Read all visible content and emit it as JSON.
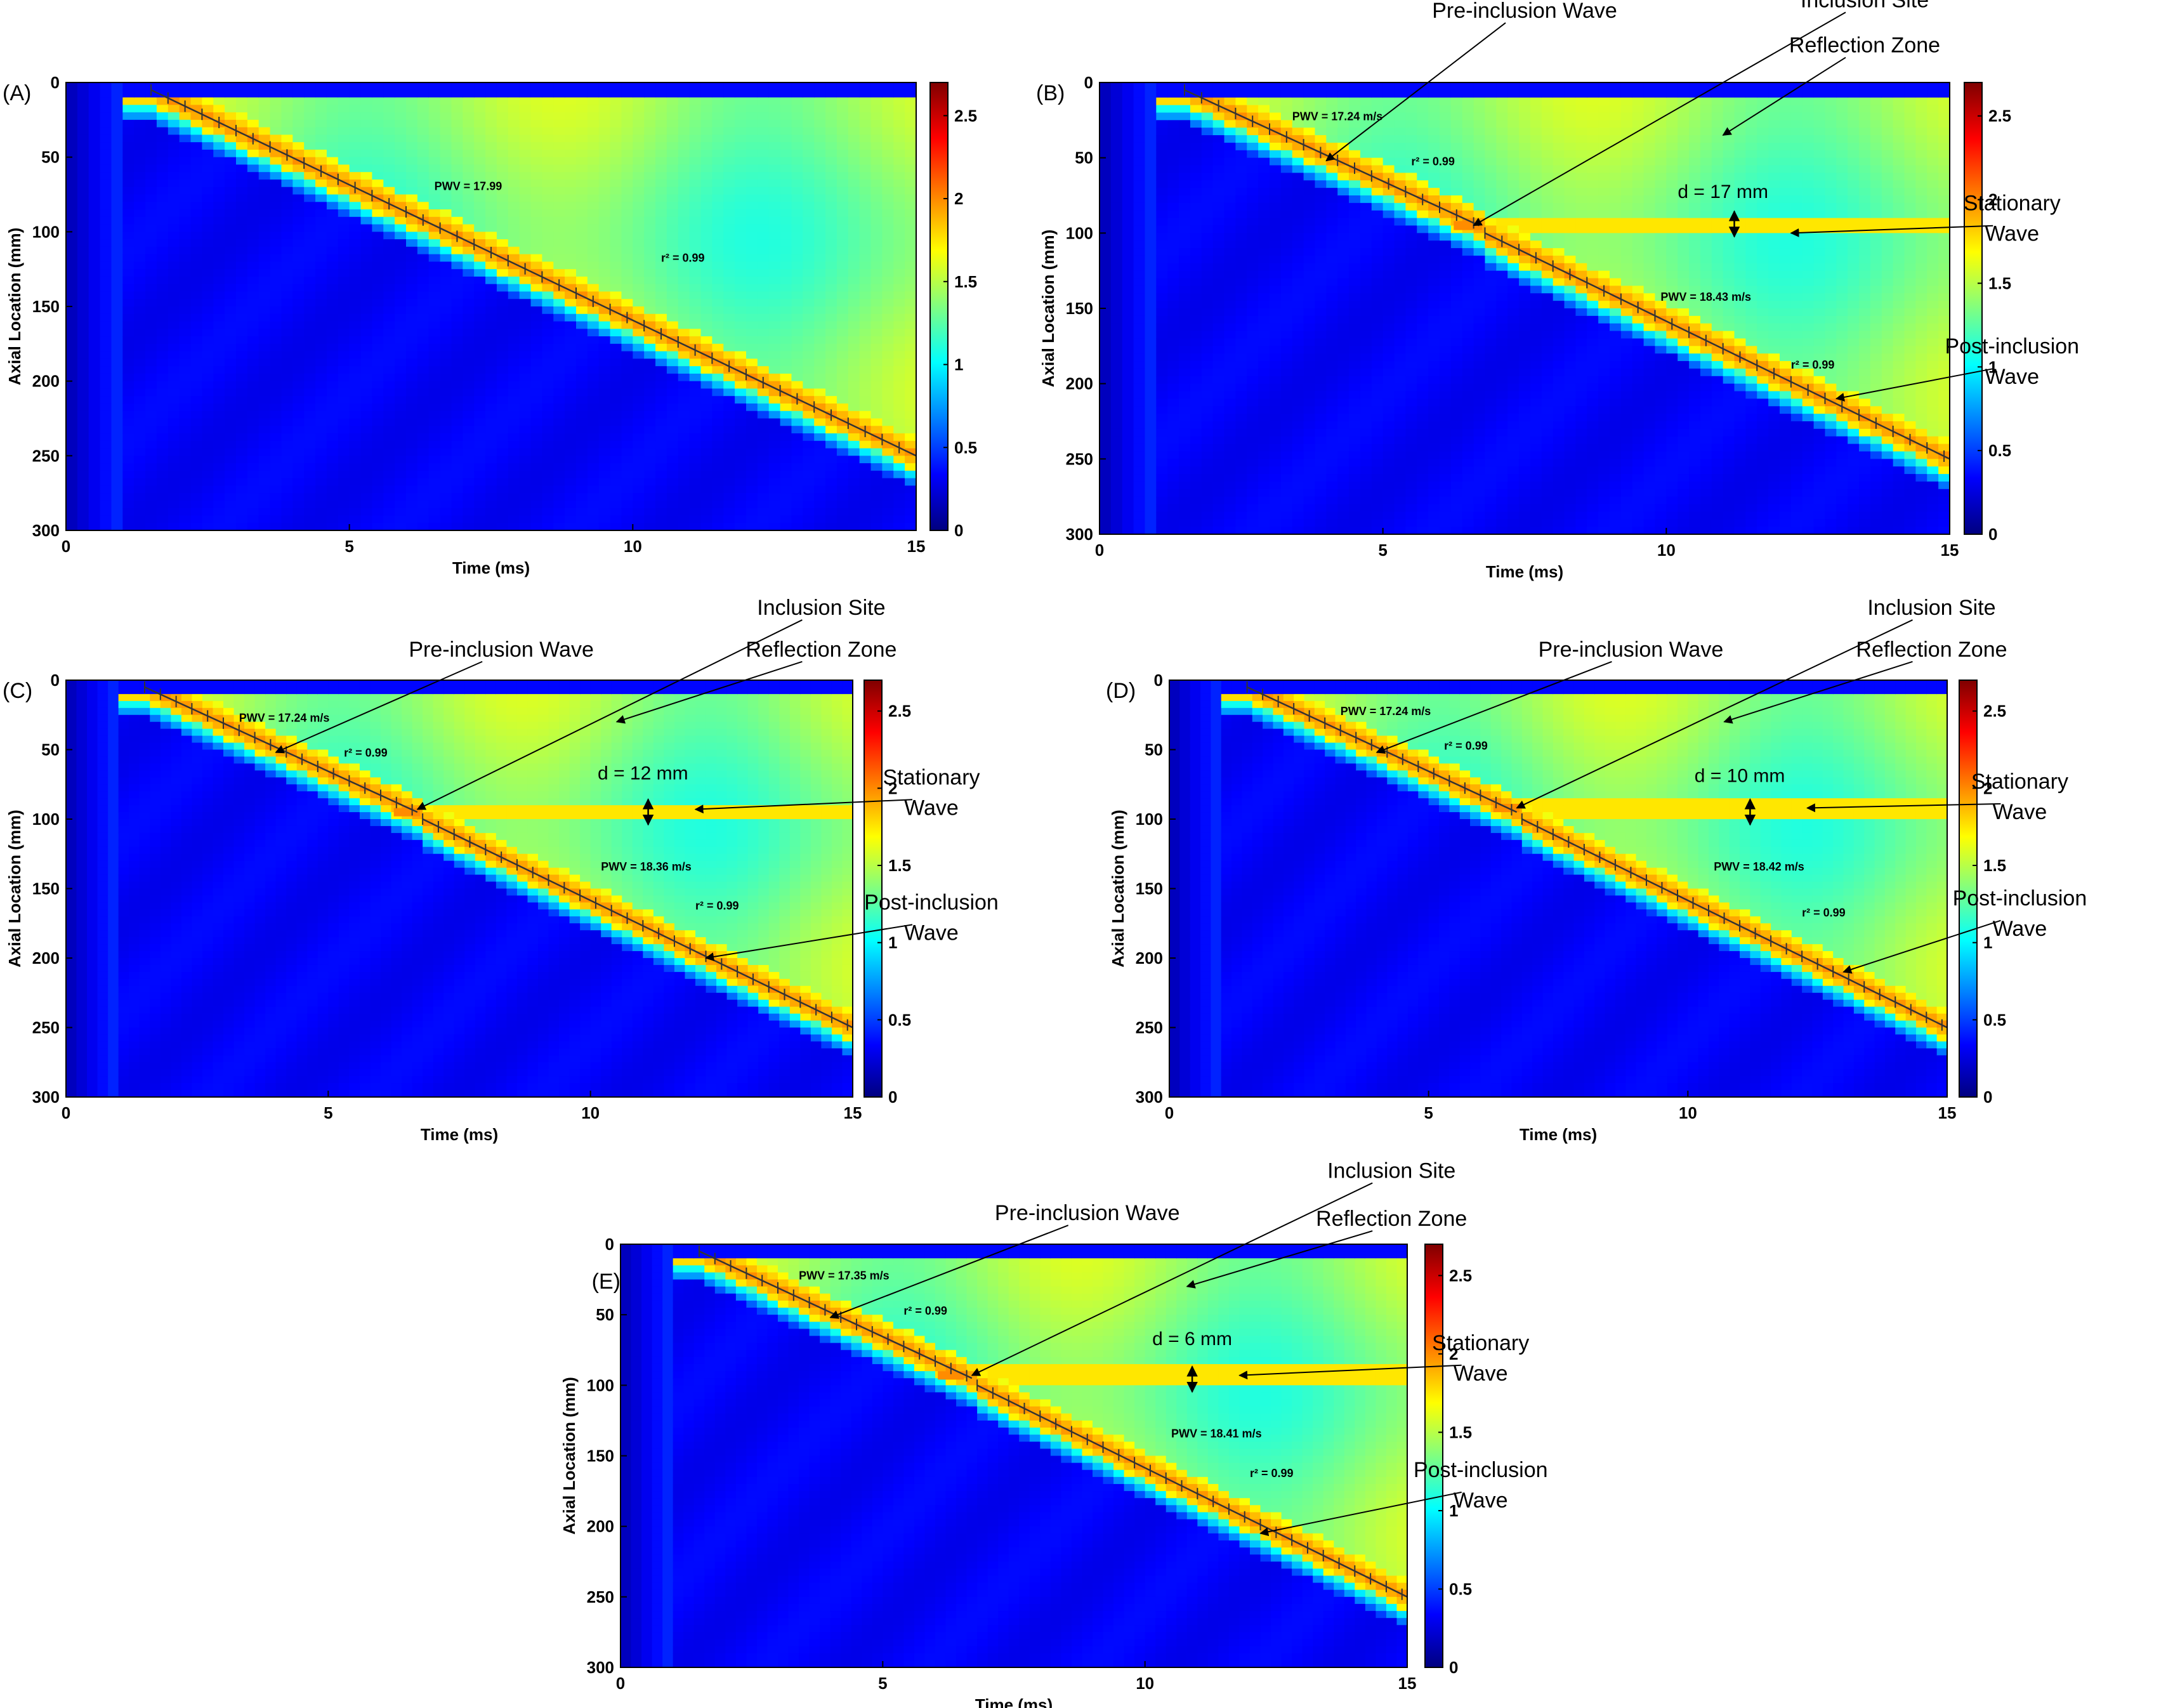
{
  "colors": {
    "colormap": [
      "#00007f",
      "#0000ff",
      "#0080ff",
      "#00ffff",
      "#80ff80",
      "#ffff00",
      "#ff8000",
      "#ff0000",
      "#7f0000"
    ],
    "background_field": "#5ee6b0",
    "lower_field": "#1e4fe0",
    "text": "#000000"
  },
  "chart_data": [
    {
      "panel_label": "(A)",
      "type": "heatmap",
      "xlabel": "Time (ms)",
      "ylabel": "Axial Location (mm)",
      "xlim": [
        0,
        15
      ],
      "ylim": [
        300,
        0
      ],
      "xticks": [
        "0",
        "5",
        "10",
        "15"
      ],
      "yticks": [
        "0",
        "50",
        "100",
        "150",
        "200",
        "250",
        "300"
      ],
      "colorbar_range": [
        0,
        2.7
      ],
      "colorbar_ticks": [
        "0",
        "0.5",
        "1",
        "1.5",
        "2",
        "2.5"
      ],
      "wave_segments": [
        {
          "t_start": 1.5,
          "t_end": 15.0,
          "z_start": 5,
          "z_end": 250,
          "pwv_label": "PWV = 17.99",
          "r2_label": "r² = 0.99",
          "pwv_at": [
            6.5,
            72
          ],
          "r2_at": [
            10.5,
            120
          ]
        }
      ],
      "inclusion": null,
      "annotations": []
    },
    {
      "panel_label": "(B)",
      "type": "heatmap",
      "xlabel": "Time (ms)",
      "ylabel": "Axial Location (mm)",
      "xlim": [
        0,
        15
      ],
      "ylim": [
        300,
        0
      ],
      "xticks": [
        "0",
        "5",
        "10",
        "15"
      ],
      "yticks": [
        "0",
        "50",
        "100",
        "150",
        "200",
        "250",
        "300"
      ],
      "colorbar_range": [
        0,
        2.7
      ],
      "colorbar_ticks": [
        "0",
        "0.5",
        "1",
        "1.5",
        "2",
        "2.5"
      ],
      "wave_segments": [
        {
          "t_start": 1.5,
          "t_end": 6.7,
          "z_start": 5,
          "z_end": 95,
          "pwv_label": "PWV = 17.24 m/s",
          "r2_label": "r² = 0.99",
          "pwv_at": [
            3.4,
            25
          ],
          "r2_at": [
            5.5,
            55
          ]
        },
        {
          "t_start": 6.8,
          "t_end": 15.0,
          "z_start": 100,
          "z_end": 250,
          "pwv_label": "PWV = 18.43 m/s",
          "r2_label": "r² = 0.99",
          "pwv_at": [
            9.9,
            145
          ],
          "r2_at": [
            12.2,
            190
          ]
        }
      ],
      "inclusion": {
        "t": 6.5,
        "z": 95
      },
      "annotations": [
        {
          "text": "Pre-inclusion  Wave",
          "target": [
            4.0,
            52
          ],
          "label_at": [
            7.5,
            -43
          ]
        },
        {
          "text": "Inclusion Site",
          "target": [
            6.6,
            95
          ],
          "label_at": [
            13.5,
            -50
          ]
        },
        {
          "text": "Reflection Zone",
          "target": [
            11.0,
            35
          ],
          "label_at": [
            13.5,
            -20
          ]
        },
        {
          "text": "d = 17 mm",
          "target": [
            11.2,
            83
          ],
          "label_at": [
            11.0,
            80
          ],
          "is_d": true
        },
        {
          "text": "Stationary\nWave",
          "target": [
            12.2,
            100
          ],
          "label_at": [
            16.1,
            85
          ]
        },
        {
          "text": "Post-inclusion\nWave",
          "target": [
            13.0,
            210
          ],
          "label_at": [
            16.1,
            180
          ]
        }
      ]
    },
    {
      "panel_label": "(C)",
      "type": "heatmap",
      "xlabel": "Time (ms)",
      "ylabel": "Axial Location (mm)",
      "xlim": [
        0,
        15
      ],
      "ylim": [
        300,
        0
      ],
      "xticks": [
        "0",
        "5",
        "10",
        "15"
      ],
      "yticks": [
        "0",
        "50",
        "100",
        "150",
        "200",
        "250",
        "300"
      ],
      "colorbar_range": [
        0,
        2.7
      ],
      "colorbar_ticks": [
        "0",
        "0.5",
        "1",
        "1.5",
        "2",
        "2.5"
      ],
      "wave_segments": [
        {
          "t_start": 1.5,
          "t_end": 6.7,
          "z_start": 5,
          "z_end": 95,
          "pwv_label": "PWV = 17.24 m/s",
          "r2_label": "r² = 0.99",
          "pwv_at": [
            3.3,
            30
          ],
          "r2_at": [
            5.3,
            55
          ]
        },
        {
          "t_start": 6.8,
          "t_end": 15.0,
          "z_start": 100,
          "z_end": 250,
          "pwv_label": "PWV = 18.36 m/s",
          "r2_label": "r² = 0.99",
          "pwv_at": [
            10.2,
            137
          ],
          "r2_at": [
            12.0,
            165
          ]
        }
      ],
      "inclusion": {
        "t": 6.5,
        "z": 95
      },
      "annotations": [
        {
          "text": "Pre-inclusion  Wave",
          "target": [
            4.0,
            52
          ],
          "label_at": [
            8.3,
            -17
          ]
        },
        {
          "text": "Inclusion Site",
          "target": [
            6.7,
            93
          ],
          "label_at": [
            14.4,
            -47
          ]
        },
        {
          "text": "Reflection Zone",
          "target": [
            10.5,
            30
          ],
          "label_at": [
            14.4,
            -17
          ]
        },
        {
          "text": "d = 12 mm",
          "target": [
            11.1,
            83
          ],
          "label_at": [
            11.0,
            75
          ],
          "is_d": true
        },
        {
          "text": "Stationary\nWave",
          "target": [
            12.0,
            93
          ],
          "label_at": [
            16.5,
            75
          ]
        },
        {
          "text": "Post-inclusion\nWave",
          "target": [
            12.2,
            200
          ],
          "label_at": [
            16.5,
            165
          ]
        }
      ]
    },
    {
      "panel_label": "(D)",
      "type": "heatmap",
      "xlabel": "Time (ms)",
      "ylabel": "Axial Location (mm)",
      "xlim": [
        0,
        15
      ],
      "ylim": [
        300,
        0
      ],
      "xticks": [
        "0",
        "5",
        "10",
        "15"
      ],
      "yticks": [
        "0",
        "50",
        "100",
        "150",
        "200",
        "250",
        "300"
      ],
      "colorbar_range": [
        0,
        2.7
      ],
      "colorbar_ticks": [
        "0",
        "0.5",
        "1",
        "1.5",
        "2",
        "2.5"
      ],
      "wave_segments": [
        {
          "t_start": 1.5,
          "t_end": 6.7,
          "z_start": 5,
          "z_end": 95,
          "pwv_label": "PWV = 17.24 m/s",
          "r2_label": "r² = 0.99",
          "pwv_at": [
            3.3,
            25
          ],
          "r2_at": [
            5.3,
            50
          ]
        },
        {
          "t_start": 6.8,
          "t_end": 15.0,
          "z_start": 100,
          "z_end": 250,
          "pwv_label": "PWV = 18.42 m/s",
          "r2_label": "r² = 0.99",
          "pwv_at": [
            10.5,
            137
          ],
          "r2_at": [
            12.2,
            170
          ]
        }
      ],
      "inclusion": {
        "t": 6.5,
        "z": 92
      },
      "annotations": [
        {
          "text": "Pre-inclusion  Wave",
          "target": [
            4.0,
            52
          ],
          "label_at": [
            8.9,
            -17
          ]
        },
        {
          "text": "Inclusion Site",
          "target": [
            6.7,
            92
          ],
          "label_at": [
            14.7,
            -47
          ]
        },
        {
          "text": "Reflection Zone",
          "target": [
            10.7,
            30
          ],
          "label_at": [
            14.7,
            -17
          ]
        },
        {
          "text": "d = 10 mm",
          "target": [
            11.2,
            83
          ],
          "label_at": [
            11.0,
            77
          ],
          "is_d": true
        },
        {
          "text": "Stationary\nWave",
          "target": [
            12.3,
            92
          ],
          "label_at": [
            16.4,
            78
          ]
        },
        {
          "text": "Post-inclusion\nWave",
          "target": [
            13.0,
            210
          ],
          "label_at": [
            16.4,
            162
          ]
        }
      ]
    },
    {
      "panel_label": "(E)",
      "type": "heatmap",
      "xlabel": "Time (ms)",
      "ylabel": "Axial Location (mm)",
      "xlim": [
        0,
        15
      ],
      "ylim": [
        300,
        0
      ],
      "xticks": [
        "0",
        "5",
        "10",
        "15"
      ],
      "yticks": [
        "0",
        "50",
        "100",
        "150",
        "200",
        "250",
        "300"
      ],
      "colorbar_range": [
        0,
        2.7
      ],
      "colorbar_ticks": [
        "0",
        "0.5",
        "1",
        "1.5",
        "2",
        "2.5"
      ],
      "wave_segments": [
        {
          "t_start": 1.5,
          "t_end": 6.7,
          "z_start": 5,
          "z_end": 95,
          "pwv_label": "PWV = 17.35 m/s",
          "r2_label": "r² = 0.99",
          "pwv_at": [
            3.4,
            25
          ],
          "r2_at": [
            5.4,
            50
          ]
        },
        {
          "t_start": 6.8,
          "t_end": 15.0,
          "z_start": 100,
          "z_end": 250,
          "pwv_label": "PWV = 18.41 m/s",
          "r2_label": "r² = 0.99",
          "pwv_at": [
            10.5,
            137
          ],
          "r2_at": [
            12.0,
            165
          ]
        }
      ],
      "inclusion": {
        "t": 6.3,
        "z": 93
      },
      "annotations": [
        {
          "text": "Pre-inclusion  Wave",
          "target": [
            4.0,
            52
          ],
          "label_at": [
            8.9,
            -17
          ]
        },
        {
          "text": "Inclusion Site",
          "target": [
            6.7,
            93
          ],
          "label_at": [
            14.7,
            -47
          ]
        },
        {
          "text": "Reflection Zone",
          "target": [
            10.8,
            30
          ],
          "label_at": [
            14.7,
            -13
          ]
        },
        {
          "text": "d = 6 mm",
          "target": [
            10.9,
            84
          ],
          "label_at": [
            10.9,
            75
          ],
          "is_d": true
        },
        {
          "text": "Stationary\nWave",
          "target": [
            11.8,
            93
          ],
          "label_at": [
            16.4,
            75
          ]
        },
        {
          "text": "Post-inclusion\nWave",
          "target": [
            12.2,
            205
          ],
          "label_at": [
            16.4,
            165
          ]
        }
      ]
    }
  ]
}
